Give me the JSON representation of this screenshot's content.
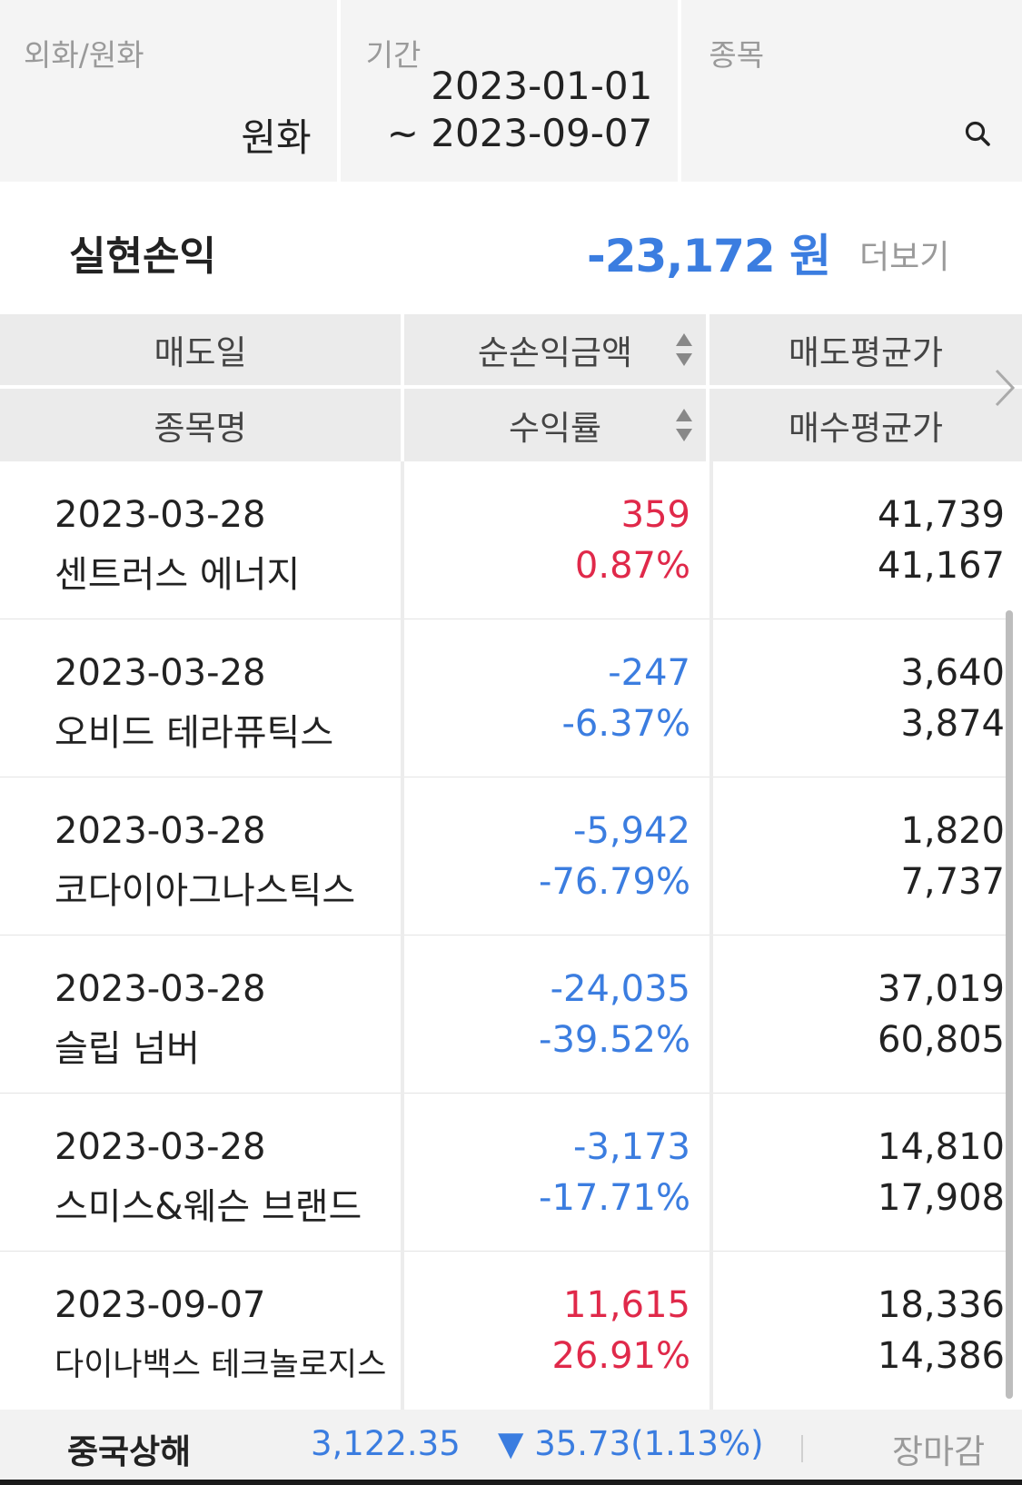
{
  "filters": {
    "currency": {
      "label": "외화/원화",
      "value": "원화"
    },
    "period": {
      "label": "기간",
      "from": "2023-01-01",
      "to": "~ 2023-09-07"
    },
    "stock": {
      "label": "종목",
      "icon": "search-icon"
    }
  },
  "summary": {
    "title": "실현손익",
    "value": "-23,172 원",
    "more_label": "더보기",
    "value_color": "#3b7de0"
  },
  "table": {
    "header": {
      "row1": [
        "매도일",
        "순손익금액",
        "매도평균가"
      ],
      "row2": [
        "종목명",
        "수익률",
        "매수평균가"
      ]
    },
    "rows": [
      {
        "date": "2023-03-28",
        "name": "센트러스 에너지",
        "pnl": "359",
        "rate": "0.87%",
        "sell_avg": "41,739",
        "buy_avg": "41,167",
        "direction": "up"
      },
      {
        "date": "2023-03-28",
        "name": "오비드 테라퓨틱스",
        "pnl": "-247",
        "rate": "-6.37%",
        "sell_avg": "3,640",
        "buy_avg": "3,874",
        "direction": "down"
      },
      {
        "date": "2023-03-28",
        "name": "코다이아그나스틱스",
        "pnl": "-5,942",
        "rate": "-76.79%",
        "sell_avg": "1,820",
        "buy_avg": "7,737",
        "direction": "down"
      },
      {
        "date": "2023-03-28",
        "name": "슬립 넘버",
        "pnl": "-24,035",
        "rate": "-39.52%",
        "sell_avg": "37,019",
        "buy_avg": "60,805",
        "direction": "down"
      },
      {
        "date": "2023-03-28",
        "name": "스미스&웨슨 브랜드",
        "pnl": "-3,173",
        "rate": "-17.71%",
        "sell_avg": "14,810",
        "buy_avg": "17,908",
        "direction": "down"
      },
      {
        "date": "2023-09-07",
        "name": "다이나백스 테크놀로지스",
        "pnl": "11,615",
        "rate": "26.91%",
        "sell_avg": "18,336",
        "buy_avg": "14,386",
        "direction": "up"
      }
    ]
  },
  "ticker": {
    "name": "중국상해",
    "price": "3,122.35",
    "change": "▼ 35.73(1.13%)",
    "status": "장마감"
  },
  "colors": {
    "up": "#e0294a",
    "down": "#3b7de0"
  }
}
